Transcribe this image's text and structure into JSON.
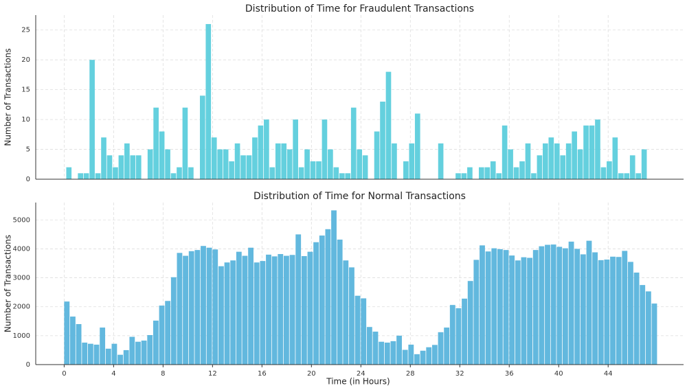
{
  "chart_data": [
    {
      "type": "histogram",
      "title": "Distribution of Time for Fraudulent Transactions",
      "ylabel": "Number of Transactions",
      "color": "#5ccedc",
      "bins": [
        0.17,
        0.64,
        1.11,
        1.58,
        2.05,
        2.52,
        2.99,
        3.46,
        3.93,
        4.4,
        4.87,
        5.34,
        5.81,
        6.28,
        6.75,
        7.22,
        7.69,
        8.16,
        8.63,
        9.1,
        9.57,
        10.04,
        10.51,
        10.98,
        11.45,
        11.92,
        12.39,
        12.86,
        13.33,
        13.8,
        14.27,
        14.74,
        15.21,
        15.68,
        16.15,
        16.62,
        17.09,
        17.56,
        18.03,
        18.5,
        18.97,
        19.44,
        19.91,
        20.38,
        20.85,
        21.32,
        21.79,
        22.26,
        22.73,
        23.2,
        23.67,
        24.14,
        24.61,
        25.08,
        25.55,
        26.02,
        26.49,
        26.96,
        27.43,
        27.9,
        28.37,
        28.84,
        29.31,
        29.78,
        30.25,
        30.72,
        31.19,
        31.66,
        32.13,
        32.6,
        33.07,
        33.54,
        34.01,
        34.48,
        34.95,
        35.42,
        35.89,
        36.36,
        36.83,
        37.3,
        37.77,
        38.24,
        38.71,
        39.18,
        39.65,
        40.12,
        40.59,
        41.06,
        41.53,
        42.0,
        42.47,
        42.94,
        43.41,
        43.88,
        44.35,
        44.82,
        45.29,
        45.76,
        46.23,
        46.7,
        47.17
      ],
      "values": [
        2,
        0,
        1,
        1,
        20,
        1,
        7,
        4,
        2,
        4,
        6,
        4,
        4,
        0,
        5,
        12,
        8,
        5,
        1,
        2,
        12,
        2,
        0,
        14,
        26,
        7,
        5,
        5,
        3,
        6,
        4,
        4,
        7,
        9,
        10,
        2,
        6,
        6,
        5,
        10,
        2,
        5,
        3,
        3,
        10,
        5,
        2,
        1,
        1,
        12,
        5,
        4,
        0,
        8,
        13,
        18,
        6,
        0,
        3,
        6,
        11,
        0,
        0,
        0,
        6,
        0,
        0,
        1,
        1,
        2,
        0,
        2,
        2,
        3,
        1,
        9,
        5,
        2,
        3,
        6,
        1,
        4,
        6,
        7,
        6,
        4,
        6,
        8,
        5,
        9,
        9,
        10,
        2,
        3,
        7,
        1,
        1,
        4,
        1,
        5
      ],
      "xlim": [
        -2.3,
        50.1
      ],
      "xticks": [
        0,
        4,
        8,
        12,
        16,
        20,
        24,
        28,
        32,
        36,
        40,
        44
      ],
      "ylim": [
        0,
        27.5
      ],
      "yticks": [
        0,
        5,
        10,
        15,
        20,
        25
      ],
      "grid": true
    },
    {
      "type": "histogram",
      "title": "Distribution of Time for Normal Transactions",
      "xlabel": "Time (in Hours)",
      "ylabel": "Number of Transactions",
      "color": "#5ab4dc",
      "bins": [
        0,
        0.48,
        0.96,
        1.44,
        1.92,
        2.4,
        2.88,
        3.36,
        3.84,
        4.32,
        4.8,
        5.28,
        5.76,
        6.24,
        6.72,
        7.2,
        7.68,
        8.16,
        8.64,
        9.12,
        9.6,
        10.08,
        10.56,
        11.04,
        11.52,
        12,
        12.48,
        12.96,
        13.44,
        13.92,
        14.4,
        14.88,
        15.36,
        15.84,
        16.32,
        16.8,
        17.28,
        17.76,
        18.24,
        18.72,
        19.2,
        19.68,
        20.16,
        20.64,
        21.12,
        21.6,
        22.08,
        22.56,
        23.04,
        23.52,
        24,
        24.48,
        24.96,
        25.44,
        25.92,
        26.4,
        26.88,
        27.36,
        27.84,
        28.32,
        28.8,
        29.28,
        29.76,
        30.24,
        30.72,
        31.2,
        31.68,
        32.16,
        32.64,
        33.12,
        33.6,
        34.08,
        34.56,
        35.04,
        35.52,
        36,
        36.48,
        36.96,
        37.44,
        37.92,
        38.4,
        38.88,
        39.36,
        39.84,
        40.32,
        40.8,
        41.28,
        41.76,
        42.24,
        42.72,
        43.2,
        43.68,
        44.16,
        44.64,
        45.12,
        45.6,
        46.08,
        46.56,
        47.04,
        47.52,
        48
      ],
      "values": [
        2180,
        1660,
        1400,
        760,
        720,
        690,
        1280,
        550,
        720,
        340,
        500,
        960,
        790,
        830,
        1020,
        1520,
        2040,
        2200,
        3020,
        3860,
        3760,
        3920,
        3960,
        4100,
        4040,
        3980,
        3400,
        3530,
        3600,
        3900,
        3760,
        4040,
        3530,
        3580,
        3800,
        3740,
        3820,
        3760,
        3790,
        4500,
        3750,
        3900,
        4230,
        4460,
        4680,
        5330,
        4320,
        3600,
        3360,
        2380,
        2290,
        1300,
        1140,
        790,
        760,
        810,
        1000,
        510,
        690,
        360,
        480,
        600,
        680,
        1120,
        1280,
        2060,
        1950,
        2280,
        2890,
        3620,
        4120,
        3910,
        4020,
        3990,
        3960,
        3770,
        3600,
        3710,
        3690,
        3960,
        4090,
        4140,
        4150,
        4070,
        4020,
        4250,
        4000,
        3810,
        4280,
        3880,
        3610,
        3630,
        3730,
        3720,
        3930,
        3550,
        3180,
        2750,
        2530,
        2110
      ],
      "xlim": [
        -2.3,
        50.1
      ],
      "xticks": [
        0,
        4,
        8,
        12,
        16,
        20,
        24,
        28,
        32,
        36,
        40,
        44
      ],
      "ylim": [
        0,
        5600
      ],
      "yticks": [
        0,
        1000,
        2000,
        3000,
        4000,
        5000
      ],
      "grid": true
    }
  ]
}
